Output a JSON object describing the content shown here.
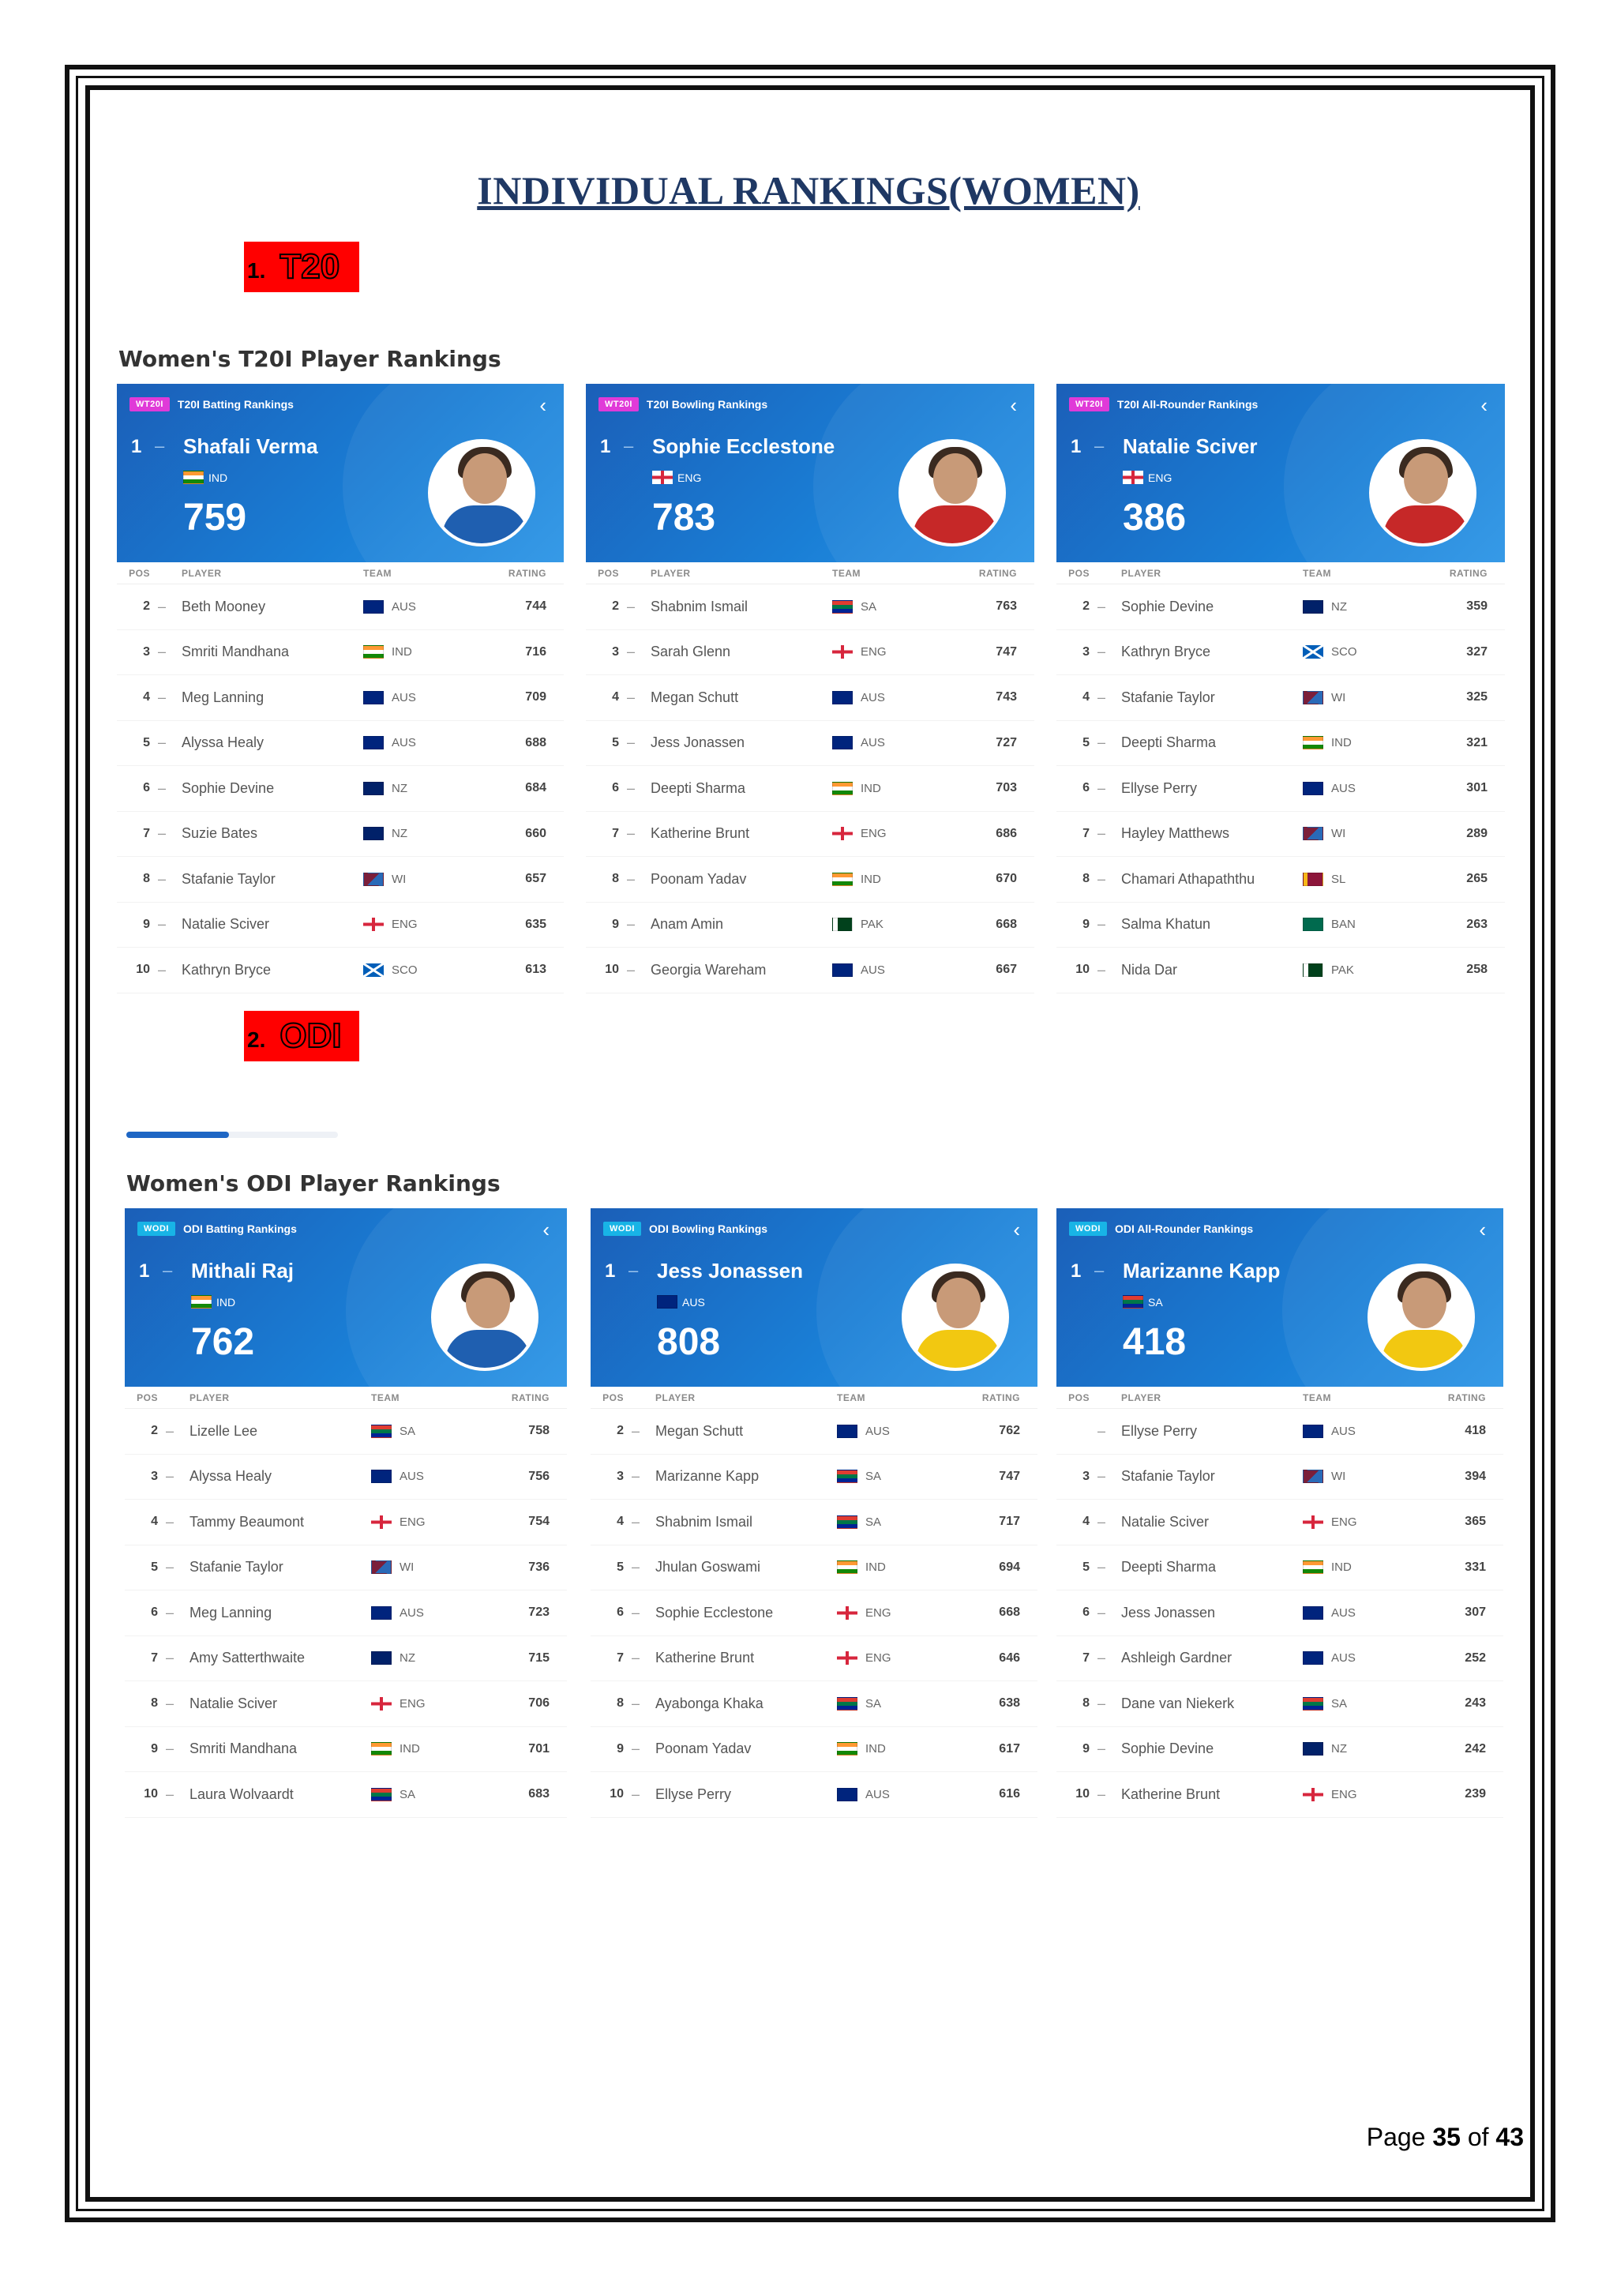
{
  "title": "INDIVIDUAL RANKINGS(WOMEN)",
  "footer": {
    "page_word": "Page",
    "page_num": "35",
    "of_word": "of",
    "total": "43"
  },
  "sections": [
    {
      "num": "1.",
      "name": "T20",
      "heading": "Women's T20I Player Rankings",
      "badge": "WT20I",
      "panels": [
        {
          "subtitle": "T20I Batting Rankings",
          "leader": {
            "pos": "1",
            "name": "Shafali Verma",
            "team": "IND",
            "rating": "759",
            "jersey": "#1f5fb0"
          },
          "cols": {
            "pos": "POS",
            "player": "PLAYER",
            "team": "TEAM",
            "rating": "RATING"
          },
          "rows": [
            {
              "pos": "2",
              "player": "Beth Mooney",
              "team": "AUS",
              "rating": "744"
            },
            {
              "pos": "3",
              "player": "Smriti Mandhana",
              "team": "IND",
              "rating": "716"
            },
            {
              "pos": "4",
              "player": "Meg Lanning",
              "team": "AUS",
              "rating": "709"
            },
            {
              "pos": "5",
              "player": "Alyssa Healy",
              "team": "AUS",
              "rating": "688"
            },
            {
              "pos": "6",
              "player": "Sophie Devine",
              "team": "NZ",
              "rating": "684"
            },
            {
              "pos": "7",
              "player": "Suzie Bates",
              "team": "NZ",
              "rating": "660"
            },
            {
              "pos": "8",
              "player": "Stafanie Taylor",
              "team": "WI",
              "rating": "657"
            },
            {
              "pos": "9",
              "player": "Natalie Sciver",
              "team": "ENG",
              "rating": "635"
            },
            {
              "pos": "10",
              "player": "Kathryn Bryce",
              "team": "SCO",
              "rating": "613"
            }
          ]
        },
        {
          "subtitle": "T20I Bowling Rankings",
          "leader": {
            "pos": "1",
            "name": "Sophie Ecclestone",
            "team": "ENG",
            "rating": "783",
            "jersey": "#c62828"
          },
          "cols": {
            "pos": "POS",
            "player": "PLAYER",
            "team": "TEAM",
            "rating": "RATING"
          },
          "rows": [
            {
              "pos": "2",
              "player": "Shabnim Ismail",
              "team": "SA",
              "rating": "763"
            },
            {
              "pos": "3",
              "player": "Sarah Glenn",
              "team": "ENG",
              "rating": "747"
            },
            {
              "pos": "4",
              "player": "Megan Schutt",
              "team": "AUS",
              "rating": "743"
            },
            {
              "pos": "5",
              "player": "Jess Jonassen",
              "team": "AUS",
              "rating": "727"
            },
            {
              "pos": "6",
              "player": "Deepti Sharma",
              "team": "IND",
              "rating": "703"
            },
            {
              "pos": "7",
              "player": "Katherine Brunt",
              "team": "ENG",
              "rating": "686"
            },
            {
              "pos": "8",
              "player": "Poonam Yadav",
              "team": "IND",
              "rating": "670"
            },
            {
              "pos": "9",
              "player": "Anam Amin",
              "team": "PAK",
              "rating": "668"
            },
            {
              "pos": "10",
              "player": "Georgia Wareham",
              "team": "AUS",
              "rating": "667"
            }
          ]
        },
        {
          "subtitle": "T20I All-Rounder Rankings",
          "leader": {
            "pos": "1",
            "name": "Natalie Sciver",
            "team": "ENG",
            "rating": "386",
            "jersey": "#c62828"
          },
          "cols": {
            "pos": "POS",
            "player": "PLAYER",
            "team": "TEAM",
            "rating": "RATING"
          },
          "rows": [
            {
              "pos": "2",
              "player": "Sophie Devine",
              "team": "NZ",
              "rating": "359"
            },
            {
              "pos": "3",
              "player": "Kathryn Bryce",
              "team": "SCO",
              "rating": "327"
            },
            {
              "pos": "4",
              "player": "Stafanie Taylor",
              "team": "WI",
              "rating": "325"
            },
            {
              "pos": "5",
              "player": "Deepti Sharma",
              "team": "IND",
              "rating": "321"
            },
            {
              "pos": "6",
              "player": "Ellyse Perry",
              "team": "AUS",
              "rating": "301"
            },
            {
              "pos": "7",
              "player": "Hayley Matthews",
              "team": "WI",
              "rating": "289"
            },
            {
              "pos": "8",
              "player": "Chamari Athapaththu",
              "team": "SL",
              "rating": "265"
            },
            {
              "pos": "9",
              "player": "Salma Khatun",
              "team": "BAN",
              "rating": "263"
            },
            {
              "pos": "10",
              "player": "Nida Dar",
              "team": "PAK",
              "rating": "258"
            }
          ]
        }
      ]
    },
    {
      "num": "2.",
      "name": "ODI",
      "heading": "Women's ODI Player Rankings",
      "badge": "WODI",
      "panels": [
        {
          "subtitle": "ODI Batting Rankings",
          "leader": {
            "pos": "1",
            "name": "Mithali Raj",
            "team": "IND",
            "rating": "762",
            "jersey": "#1f5fb0"
          },
          "cols": {
            "pos": "POS",
            "player": "PLAYER",
            "team": "TEAM",
            "rating": "RATING"
          },
          "rows": [
            {
              "pos": "2",
              "player": "Lizelle Lee",
              "team": "SA",
              "rating": "758"
            },
            {
              "pos": "3",
              "player": "Alyssa Healy",
              "team": "AUS",
              "rating": "756"
            },
            {
              "pos": "4",
              "player": "Tammy Beaumont",
              "team": "ENG",
              "rating": "754"
            },
            {
              "pos": "5",
              "player": "Stafanie Taylor",
              "team": "WI",
              "rating": "736"
            },
            {
              "pos": "6",
              "player": "Meg Lanning",
              "team": "AUS",
              "rating": "723"
            },
            {
              "pos": "7",
              "player": "Amy Satterthwaite",
              "team": "NZ",
              "rating": "715"
            },
            {
              "pos": "8",
              "player": "Natalie Sciver",
              "team": "ENG",
              "rating": "706"
            },
            {
              "pos": "9",
              "player": "Smriti Mandhana",
              "team": "IND",
              "rating": "701"
            },
            {
              "pos": "10",
              "player": "Laura Wolvaardt",
              "team": "SA",
              "rating": "683"
            }
          ]
        },
        {
          "subtitle": "ODI Bowling Rankings",
          "leader": {
            "pos": "1",
            "name": "Jess Jonassen",
            "team": "AUS",
            "rating": "808",
            "jersey": "#f2c811"
          },
          "cols": {
            "pos": "POS",
            "player": "PLAYER",
            "team": "TEAM",
            "rating": "RATING"
          },
          "rows": [
            {
              "pos": "2",
              "player": "Megan Schutt",
              "team": "AUS",
              "rating": "762"
            },
            {
              "pos": "3",
              "player": "Marizanne Kapp",
              "team": "SA",
              "rating": "747"
            },
            {
              "pos": "4",
              "player": "Shabnim Ismail",
              "team": "SA",
              "rating": "717"
            },
            {
              "pos": "5",
              "player": "Jhulan Goswami",
              "team": "IND",
              "rating": "694"
            },
            {
              "pos": "6",
              "player": "Sophie Ecclestone",
              "team": "ENG",
              "rating": "668"
            },
            {
              "pos": "7",
              "player": "Katherine Brunt",
              "team": "ENG",
              "rating": "646"
            },
            {
              "pos": "8",
              "player": "Ayabonga Khaka",
              "team": "SA",
              "rating": "638"
            },
            {
              "pos": "9",
              "player": "Poonam Yadav",
              "team": "IND",
              "rating": "617"
            },
            {
              "pos": "10",
              "player": "Ellyse Perry",
              "team": "AUS",
              "rating": "616"
            }
          ]
        },
        {
          "subtitle": "ODI All-Rounder Rankings",
          "leader": {
            "pos": "1",
            "name": "Marizanne Kapp",
            "team": "SA",
            "rating": "418",
            "jersey": "#f2c811"
          },
          "cols": {
            "pos": "POS",
            "player": "PLAYER",
            "team": "TEAM",
            "rating": "RATING"
          },
          "rows": [
            {
              "pos": "",
              "player": "Ellyse Perry",
              "team": "AUS",
              "rating": "418"
            },
            {
              "pos": "3",
              "player": "Stafanie Taylor",
              "team": "WI",
              "rating": "394"
            },
            {
              "pos": "4",
              "player": "Natalie Sciver",
              "team": "ENG",
              "rating": "365"
            },
            {
              "pos": "5",
              "player": "Deepti Sharma",
              "team": "IND",
              "rating": "331"
            },
            {
              "pos": "6",
              "player": "Jess Jonassen",
              "team": "AUS",
              "rating": "307"
            },
            {
              "pos": "7",
              "player": "Ashleigh Gardner",
              "team": "AUS",
              "rating": "252"
            },
            {
              "pos": "8",
              "player": "Dane van Niekerk",
              "team": "SA",
              "rating": "243"
            },
            {
              "pos": "9",
              "player": "Sophie Devine",
              "team": "NZ",
              "rating": "242"
            },
            {
              "pos": "10",
              "player": "Katherine Brunt",
              "team": "ENG",
              "rating": "239"
            }
          ]
        }
      ]
    }
  ]
}
